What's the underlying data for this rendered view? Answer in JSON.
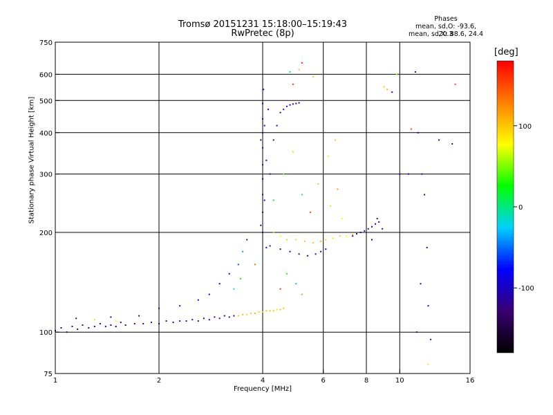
{
  "header": {
    "title_line1": "Tromsø 20151231 15:18:00–15:19:43",
    "title_line2": "RwPretec (8p)",
    "stats_title": "Phases",
    "stats_o": "mean, sd,O: -93.6, 20.3",
    "stats_x": "mean, sd,X:  88.6, 24.4"
  },
  "colorbar": {
    "label": "[deg]",
    "ticks": [
      "100",
      "0",
      "-100"
    ],
    "tick_values": [
      100,
      0,
      -100
    ],
    "range": [
      -180,
      180
    ],
    "palette": [
      "#000000",
      "#3a0070",
      "#0000ff",
      "#00d0ff",
      "#00ff00",
      "#ffff00",
      "#ff8000",
      "#ff0000"
    ]
  },
  "chart_data": {
    "type": "scatter",
    "xlabel": "Frequency [MHz]",
    "ylabel": "Stationary phase Virtual Height [km]",
    "xscale": "log",
    "yscale": "log",
    "xlim": [
      1,
      16
    ],
    "ylim": [
      75,
      750
    ],
    "xticks": [
      "1",
      "2",
      "4",
      "6",
      "8",
      "10",
      "16"
    ],
    "xtick_values": [
      1,
      2,
      4,
      6,
      8,
      10,
      16
    ],
    "yticks": [
      "75",
      "100",
      "200",
      "300",
      "400",
      "500",
      "600",
      "750"
    ],
    "ytick_values": [
      75,
      100,
      200,
      300,
      400,
      500,
      600,
      750
    ],
    "grid_x": [
      2,
      4,
      6,
      8,
      10
    ],
    "grid_y": [
      100,
      200,
      300,
      400,
      500,
      600
    ],
    "color_encodes": "phase [deg]",
    "points": [
      [
        1.0,
        101,
        -100
      ],
      [
        1.04,
        103,
        -100
      ],
      [
        1.08,
        100,
        -105
      ],
      [
        1.12,
        104,
        -95
      ],
      [
        1.16,
        102,
        -100
      ],
      [
        1.2,
        105,
        -110
      ],
      [
        1.25,
        103,
        -98
      ],
      [
        1.3,
        104,
        -100
      ],
      [
        1.35,
        106,
        -100
      ],
      [
        1.4,
        104,
        -102
      ],
      [
        1.45,
        105,
        -96
      ],
      [
        1.5,
        104,
        -100
      ],
      [
        1.55,
        107,
        -104
      ],
      [
        1.6,
        105,
        -100
      ],
      [
        1.7,
        106,
        -98
      ],
      [
        1.8,
        106,
        -100
      ],
      [
        1.9,
        107,
        -100
      ],
      [
        2.0,
        106,
        -102
      ],
      [
        2.1,
        108,
        -100
      ],
      [
        2.2,
        107,
        -96
      ],
      [
        2.3,
        108,
        -100
      ],
      [
        2.4,
        108,
        -104
      ],
      [
        2.5,
        109,
        -100
      ],
      [
        2.6,
        108,
        -100
      ],
      [
        2.7,
        110,
        -98
      ],
      [
        2.8,
        109,
        -100
      ],
      [
        2.9,
        111,
        -100
      ],
      [
        3.0,
        110,
        -102
      ],
      [
        3.1,
        112,
        -100
      ],
      [
        3.2,
        111,
        -100
      ],
      [
        3.3,
        112,
        -98
      ],
      [
        1.15,
        110,
        -100
      ],
      [
        1.45,
        111,
        -100
      ],
      [
        1.75,
        112,
        -104
      ],
      [
        2.0,
        118,
        -100
      ],
      [
        2.3,
        120,
        -96
      ],
      [
        2.6,
        125,
        -100
      ],
      [
        2.8,
        130,
        -102
      ],
      [
        3.0,
        140,
        -100
      ],
      [
        3.2,
        150,
        -90
      ],
      [
        3.4,
        160,
        -60
      ],
      [
        3.5,
        175,
        -40
      ],
      [
        3.6,
        190,
        -100
      ],
      [
        3.3,
        135,
        -20
      ],
      [
        3.45,
        145,
        30
      ],
      [
        1.3,
        109,
        60
      ],
      [
        1.5,
        108,
        80
      ],
      [
        3.4,
        112,
        100
      ],
      [
        3.5,
        113,
        105
      ],
      [
        3.6,
        113,
        95
      ],
      [
        3.7,
        114,
        100
      ],
      [
        3.8,
        114,
        110
      ],
      [
        3.9,
        115,
        100
      ],
      [
        4.0,
        115,
        95
      ],
      [
        4.1,
        116,
        100
      ],
      [
        4.2,
        116,
        105
      ],
      [
        4.3,
        116,
        100
      ],
      [
        4.4,
        117,
        90
      ],
      [
        4.5,
        117,
        100
      ],
      [
        4.6,
        118,
        100
      ],
      [
        4.0,
        200,
        -100
      ],
      [
        4.0,
        230,
        -105
      ],
      [
        4.0,
        260,
        -100
      ],
      [
        4.0,
        290,
        -95
      ],
      [
        4.0,
        320,
        -100
      ],
      [
        4.0,
        360,
        -100
      ],
      [
        4.0,
        400,
        -110
      ],
      [
        4.0,
        440,
        -100
      ],
      [
        4.0,
        490,
        -100
      ],
      [
        4.02,
        540,
        -100
      ],
      [
        3.95,
        210,
        -90
      ],
      [
        3.95,
        380,
        -100
      ],
      [
        4.05,
        250,
        -100
      ],
      [
        4.05,
        420,
        -100
      ],
      [
        4.1,
        180,
        -100
      ],
      [
        4.1,
        330,
        -100
      ],
      [
        4.15,
        470,
        -80
      ],
      [
        4.2,
        300,
        -100
      ],
      [
        4.3,
        380,
        -120
      ],
      [
        4.4,
        420,
        -100
      ],
      [
        4.5,
        460,
        -100
      ],
      [
        4.6,
        470,
        -100
      ],
      [
        4.7,
        480,
        -100
      ],
      [
        4.8,
        485,
        -100
      ],
      [
        4.9,
        488,
        -100
      ],
      [
        5.0,
        490,
        -100
      ],
      [
        5.1,
        492,
        -100
      ],
      [
        4.3,
        200,
        100
      ],
      [
        4.5,
        195,
        80
      ],
      [
        4.7,
        190,
        100
      ],
      [
        5.0,
        190,
        90
      ],
      [
        5.3,
        188,
        100
      ],
      [
        5.6,
        186,
        100
      ],
      [
        5.9,
        188,
        110
      ],
      [
        6.1,
        190,
        100
      ],
      [
        6.4,
        192,
        90
      ],
      [
        6.7,
        195,
        100
      ],
      [
        7.0,
        195,
        80
      ],
      [
        7.3,
        197,
        100
      ],
      [
        4.2,
        182,
        -100
      ],
      [
        4.5,
        178,
        -100
      ],
      [
        4.8,
        175,
        -100
      ],
      [
        5.1,
        172,
        -100
      ],
      [
        5.4,
        170,
        -100
      ],
      [
        5.7,
        172,
        -100
      ],
      [
        5.9,
        175,
        -100
      ],
      [
        6.1,
        178,
        -100
      ],
      [
        7.3,
        195,
        -100
      ],
      [
        7.5,
        198,
        -110
      ],
      [
        7.7,
        200,
        -100
      ],
      [
        7.9,
        202,
        -120
      ],
      [
        8.1,
        205,
        -100
      ],
      [
        8.3,
        208,
        -110
      ],
      [
        8.5,
        212,
        -100
      ],
      [
        8.7,
        215,
        -100
      ],
      [
        8.9,
        205,
        -100
      ],
      [
        8.3,
        190,
        -100
      ],
      [
        8.6,
        220,
        -100
      ],
      [
        4.3,
        250,
        10
      ],
      [
        4.6,
        300,
        40
      ],
      [
        4.9,
        350,
        60
      ],
      [
        5.2,
        260,
        -20
      ],
      [
        5.5,
        230,
        150
      ],
      [
        5.8,
        280,
        100
      ],
      [
        6.2,
        340,
        70
      ],
      [
        6.5,
        380,
        100
      ],
      [
        6.3,
        240,
        90
      ],
      [
        6.6,
        270,
        120
      ],
      [
        6.8,
        220,
        80
      ],
      [
        4.7,
        150,
        30
      ],
      [
        5.0,
        140,
        -30
      ],
      [
        5.2,
        130,
        120
      ],
      [
        4.5,
        135,
        160
      ],
      [
        3.8,
        160,
        140
      ],
      [
        4.9,
        560,
        160
      ],
      [
        5.1,
        620,
        100
      ],
      [
        5.2,
        650,
        170
      ],
      [
        4.8,
        610,
        -20
      ],
      [
        5.6,
        590,
        60
      ],
      [
        9.0,
        550,
        100
      ],
      [
        9.2,
        540,
        110
      ],
      [
        9.5,
        530,
        -100
      ],
      [
        9.8,
        600,
        50
      ],
      [
        10.0,
        300,
        -100
      ],
      [
        10.8,
        410,
        150
      ],
      [
        11.3,
        400,
        -100
      ],
      [
        11.6,
        300,
        -100
      ],
      [
        11.8,
        260,
        -100
      ],
      [
        12.0,
        180,
        -110
      ],
      [
        12.1,
        120,
        -100
      ],
      [
        12.3,
        95,
        -100
      ],
      [
        11.2,
        100,
        -100
      ],
      [
        12.1,
        80,
        90
      ],
      [
        11.5,
        140,
        -120
      ],
      [
        11.1,
        610,
        -100
      ],
      [
        14.5,
        560,
        150
      ],
      [
        14.2,
        370,
        -100
      ],
      [
        13.0,
        380,
        -100
      ],
      [
        10.6,
        300,
        -100
      ]
    ]
  }
}
